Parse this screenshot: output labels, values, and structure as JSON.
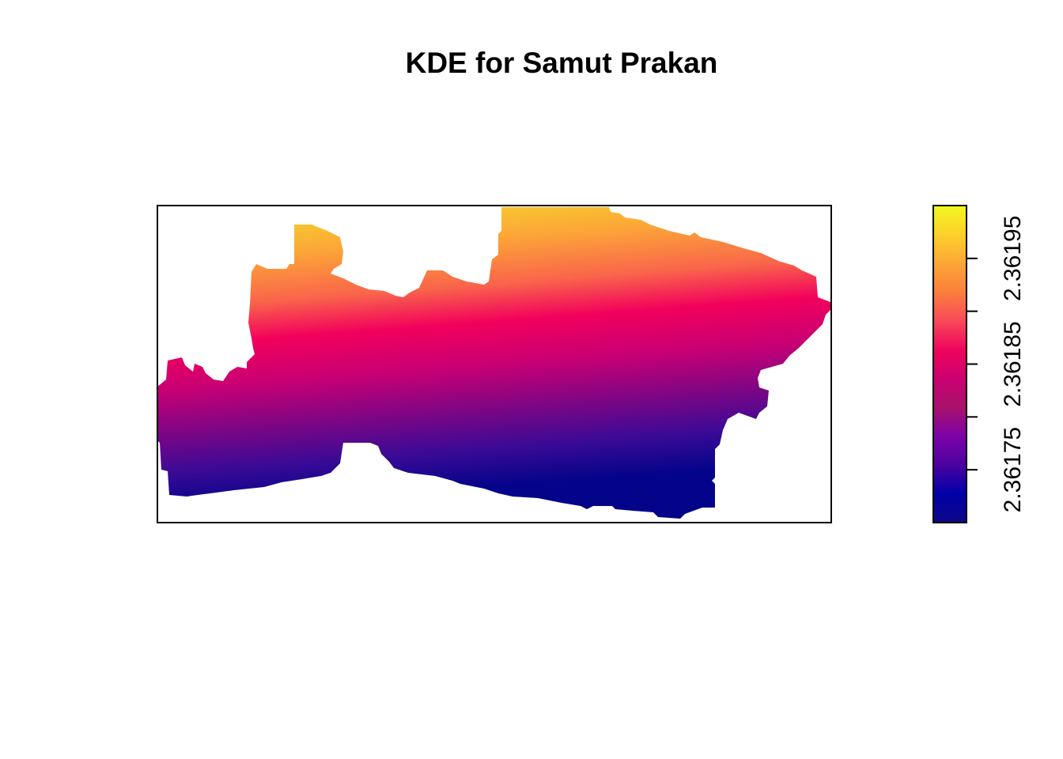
{
  "chart_data": {
    "type": "heatmap",
    "title": "KDE for Samut Prakan",
    "xlabel": "",
    "ylabel": "",
    "grid": false,
    "legend_position": "right",
    "colormap": {
      "name": "plasma",
      "stops": [
        "#0d0887",
        "#0000a8",
        "#4b03a1",
        "#7d03a8",
        "#a8126b",
        "#cc0071",
        "#f0055c",
        "#f8495a",
        "#fb7f3a",
        "#fca636",
        "#fdd02a",
        "#f0f921"
      ]
    },
    "legend": {
      "range": [
        2.3617,
        2.362
      ],
      "ticks": [
        2.36175,
        2.36185,
        2.36195
      ],
      "tick_labels": [
        "2.36175",
        "2.36185",
        "2.36195"
      ]
    },
    "density_description_value_range": [
      2.3617,
      2.362
    ]
  }
}
